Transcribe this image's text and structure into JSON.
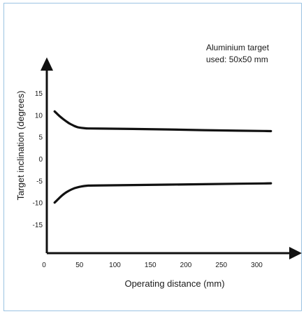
{
  "chart_data": {
    "type": "line",
    "xlabel": "Operating distance (mm)",
    "ylabel": "Target inclination (degrees)",
    "annotation": [
      "Aluminium target",
      "used: 50x50 mm"
    ],
    "x_ticks": [
      "0",
      "50",
      "100",
      "150",
      "200",
      "250",
      "300"
    ],
    "x_tick_values": [
      0,
      50,
      100,
      150,
      200,
      250,
      300
    ],
    "y_ticks": [
      "15",
      "10",
      "5",
      "0",
      "-5",
      "-10",
      "-15"
    ],
    "y_tick_values": [
      15,
      10,
      5,
      0,
      -5,
      -10,
      -15
    ],
    "xlim": [
      0,
      320
    ],
    "ylim": [
      -20,
      18
    ],
    "series": [
      {
        "x": [
          15,
          20,
          25,
          30,
          35,
          40,
          45,
          50,
          55,
          60,
          65,
          100,
          150,
          200,
          250,
          300,
          320
        ],
        "y": [
          10.8,
          10.0,
          9.3,
          8.7,
          8.1,
          7.7,
          7.3,
          7.1,
          7.0,
          6.9,
          6.9,
          6.85,
          6.75,
          6.6,
          6.45,
          6.35,
          6.3
        ]
      },
      {
        "x": [
          15,
          20,
          25,
          30,
          35,
          40,
          45,
          50,
          55,
          60,
          65,
          100,
          150,
          200,
          250,
          300,
          320
        ],
        "y": [
          -10.0,
          -9.2,
          -8.4,
          -7.8,
          -7.3,
          -6.9,
          -6.6,
          -6.4,
          -6.25,
          -6.15,
          -6.1,
          -6.05,
          -5.95,
          -5.85,
          -5.75,
          -5.65,
          -5.6
        ]
      }
    ],
    "grid": false,
    "colors": {
      "line": "#111111",
      "frame": "#9bc3e2"
    }
  }
}
